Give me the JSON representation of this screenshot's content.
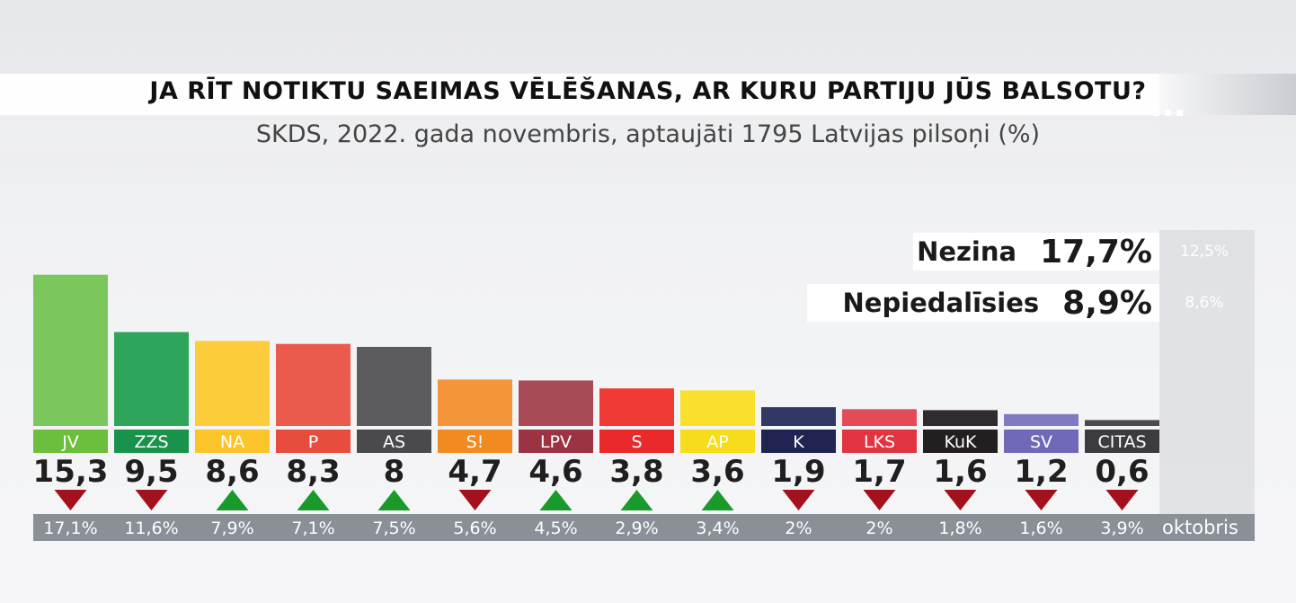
{
  "title": "JA RĪT NOTIKTU SAEIMAS VĒLĒŠANAS, AR KURU PARTIJU JŪS BALSOTU?",
  "subtitle": "SKDS, 2022. gada novembris, aptaujāti 1795 Latvijas pilsoņi (%)",
  "undecided": {
    "label": "Nezina",
    "value": "17,7%",
    "previous": "12,5%"
  },
  "not_participating": {
    "label": "Nepiedalīsies",
    "value": "8,9%",
    "previous": "8,6%"
  },
  "previous_period_label": "oktobris",
  "colors": {
    "up_arrow": "#1a9a2a",
    "down_arrow": "#a3121c",
    "previous_band": "#8b8f97"
  },
  "chart_data": {
    "type": "bar",
    "title": "JA RĪT NOTIKTU SAEIMAS VĒLĒŠANAS, AR KURU PARTIJU JŪS BALSOTU?",
    "categories": [
      "JV",
      "ZZS",
      "NA",
      "P",
      "AS",
      "S!",
      "LPV",
      "S",
      "AP",
      "K",
      "LKS",
      "KuK",
      "SV",
      "CITAS"
    ],
    "values": [
      15.3,
      9.5,
      8.6,
      8.3,
      8,
      4.7,
      4.6,
      3.8,
      3.6,
      1.9,
      1.7,
      1.6,
      1.2,
      0.6
    ],
    "value_labels": [
      "15,3",
      "9,5",
      "8,6",
      "8,3",
      "8",
      "4,7",
      "4,6",
      "3,8",
      "3,6",
      "1,9",
      "1,7",
      "1,6",
      "1,2",
      "0,6"
    ],
    "previous_labels": [
      "17,1%",
      "11,6%",
      "7,9%",
      "7,1%",
      "7,5%",
      "5,6%",
      "4,5%",
      "2,9%",
      "3,4%",
      "2%",
      "2%",
      "1,8%",
      "1,6%",
      "3,9%"
    ],
    "trend": [
      "down",
      "down",
      "up",
      "up",
      "up",
      "down",
      "up",
      "up",
      "up",
      "down",
      "down",
      "down",
      "down",
      "down"
    ],
    "colors": [
      "#7cc75b",
      "#2fa55b",
      "#fccc3a",
      "#ea5b4d",
      "#5c5c60",
      "#f4953a",
      "#a84b56",
      "#ef3a36",
      "#f8e02c",
      "#313864",
      "#e34b58",
      "#302b2f",
      "#8079c3",
      "#4a4a4f"
    ],
    "label_colors": [
      "#6cbf3c",
      "#19934b",
      "#fbc52a",
      "#e84c3c",
      "#4a4a4e",
      "#f28a22",
      "#9c3342",
      "#ea2a2a",
      "#f7dc1c",
      "#1f2452",
      "#e0343f",
      "#231f21",
      "#6f69b8",
      "#3c3c40"
    ],
    "ylim": [
      0,
      16
    ]
  }
}
